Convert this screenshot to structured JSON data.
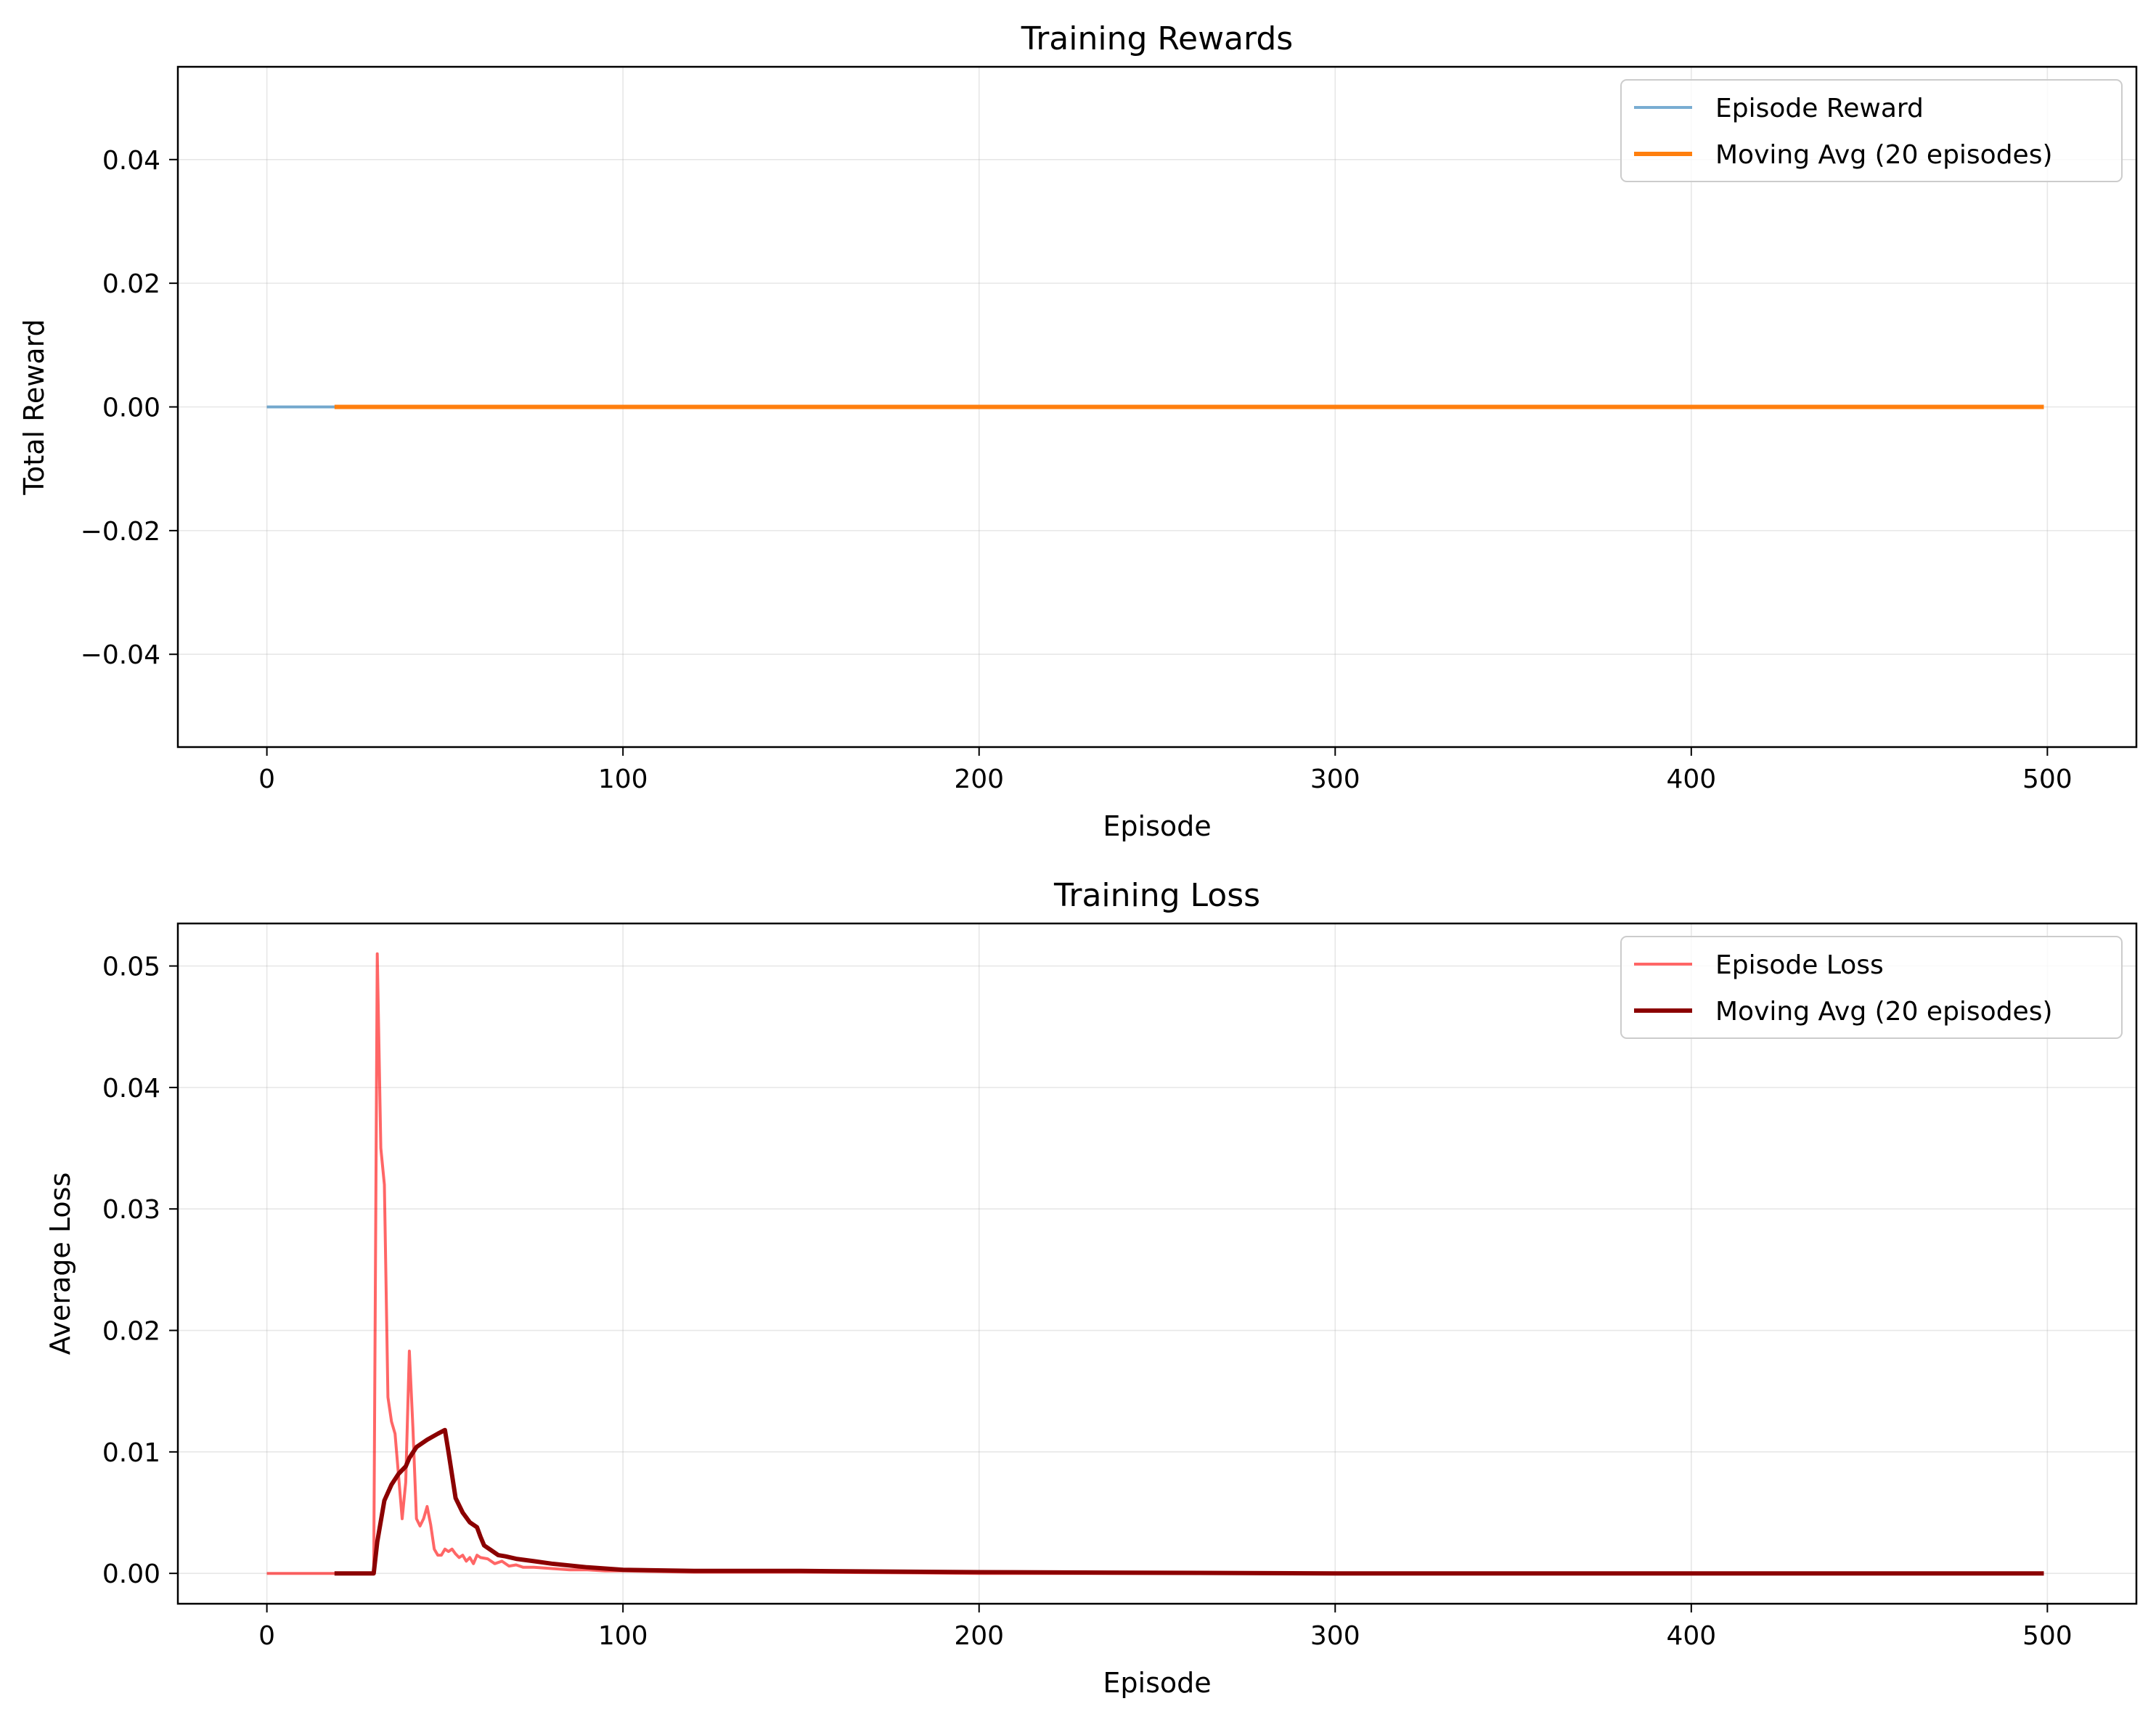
{
  "chart_data": [
    {
      "type": "line",
      "title": "Training Rewards",
      "xlabel": "Episode",
      "ylabel": "Total Reward",
      "xlim": [
        -25,
        525
      ],
      "ylim": [
        -0.055,
        0.055
      ],
      "xticks": [
        0,
        100,
        200,
        300,
        400,
        500
      ],
      "xtick_labels": [
        "0",
        "100",
        "200",
        "300",
        "400",
        "500"
      ],
      "yticks": [
        -0.04,
        -0.02,
        0.0,
        0.02,
        0.04
      ],
      "ytick_labels": [
        "−0.04",
        "−0.02",
        "0.00",
        "0.02",
        "0.04"
      ],
      "grid": true,
      "legend_position": "top-right",
      "series": [
        {
          "name": "Episode Reward",
          "color": "#1f77b4",
          "alpha": 0.6,
          "style": "thin",
          "x": [
            0,
            499
          ],
          "y": [
            0,
            0
          ]
        },
        {
          "name": "Moving Avg (20 episodes)",
          "color": "#ff7f0e",
          "alpha": 1.0,
          "style": "thick",
          "x": [
            19,
            499
          ],
          "y": [
            0,
            0
          ]
        }
      ]
    },
    {
      "type": "line",
      "title": "Training Loss",
      "xlabel": "Episode",
      "ylabel": "Average Loss",
      "xlim": [
        -25,
        525
      ],
      "ylim": [
        -0.0025,
        0.0535
      ],
      "xticks": [
        0,
        100,
        200,
        300,
        400,
        500
      ],
      "xtick_labels": [
        "0",
        "100",
        "200",
        "300",
        "400",
        "500"
      ],
      "yticks": [
        0.0,
        0.01,
        0.02,
        0.03,
        0.04,
        0.05
      ],
      "ytick_labels": [
        "0.00",
        "0.01",
        "0.02",
        "0.03",
        "0.04",
        "0.05"
      ],
      "grid": true,
      "legend_position": "top-right",
      "series": [
        {
          "name": "Episode Loss",
          "color": "#ff0000",
          "alpha": 0.6,
          "style": "thin",
          "x": [
            0,
            30,
            31,
            32,
            33,
            34,
            35,
            36,
            37,
            38,
            39,
            40,
            41,
            42,
            43,
            44,
            45,
            46,
            47,
            48,
            49,
            50,
            51,
            52,
            53,
            54,
            55,
            56,
            57,
            58,
            59,
            60,
            62,
            64,
            66,
            68,
            70,
            72,
            75,
            80,
            85,
            90,
            95,
            100,
            120,
            150,
            200,
            300,
            400,
            499
          ],
          "y": [
            0,
            0,
            0.051,
            0.035,
            0.032,
            0.0145,
            0.0125,
            0.0115,
            0.008,
            0.0045,
            0.0075,
            0.0183,
            0.012,
            0.0045,
            0.0039,
            0.0045,
            0.0055,
            0.004,
            0.002,
            0.0015,
            0.0015,
            0.002,
            0.0018,
            0.002,
            0.0016,
            0.0013,
            0.0015,
            0.001,
            0.0013,
            0.0008,
            0.0015,
            0.0013,
            0.0012,
            0.0008,
            0.001,
            0.0006,
            0.0007,
            0.0005,
            0.0005,
            0.0004,
            0.0003,
            0.0003,
            0.0002,
            0.0002,
            0.0001,
            0.0001,
            0.0,
            0.0,
            0.0,
            0.0
          ]
        },
        {
          "name": "Moving Avg (20 episodes)",
          "color": "#8b0000",
          "alpha": 1.0,
          "style": "thick",
          "x": [
            19,
            30,
            31,
            33,
            35,
            37,
            39,
            40,
            42,
            45,
            48,
            50,
            51,
            53,
            55,
            57,
            59,
            60,
            61,
            63,
            65,
            67,
            70,
            75,
            80,
            90,
            100,
            120,
            150,
            200,
            300,
            400,
            499
          ],
          "y": [
            0,
            0,
            0.0026,
            0.006,
            0.0073,
            0.0082,
            0.0088,
            0.0095,
            0.0104,
            0.011,
            0.0115,
            0.0118,
            0.01,
            0.0062,
            0.005,
            0.0042,
            0.0038,
            0.003,
            0.0023,
            0.0019,
            0.0015,
            0.0014,
            0.0012,
            0.001,
            0.0008,
            0.0005,
            0.0003,
            0.0002,
            0.0002,
            0.0001,
            0.0,
            0.0,
            0.0
          ]
        }
      ]
    }
  ]
}
